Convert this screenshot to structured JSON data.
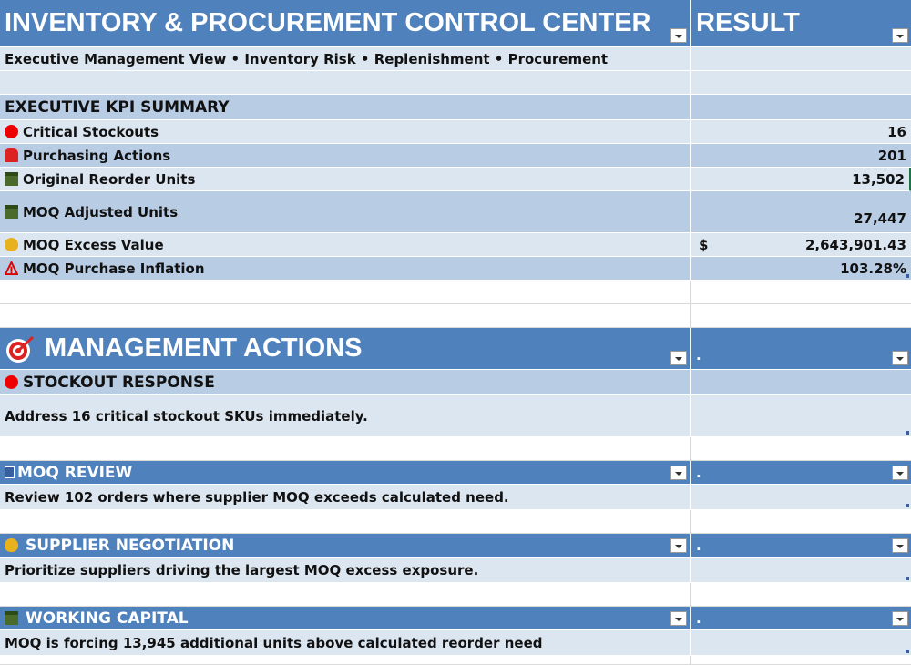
{
  "header": {
    "title": "INVENTORY & PROCUREMENT CONTROL CENTER",
    "result": "RESULT",
    "subtitle": "Executive Management View • Inventory Risk • Replenishment • Procurement"
  },
  "kpi": {
    "heading": "EXECUTIVE KPI SUMMARY",
    "rows": [
      {
        "label": "Critical Stockouts",
        "value": "16"
      },
      {
        "label": "Purchasing Actions",
        "value": "201"
      },
      {
        "label": "Original Reorder Units",
        "value": "13,502"
      },
      {
        "label": "MOQ Adjusted Units",
        "value": "27,447"
      },
      {
        "label": "MOQ Excess Value",
        "currency": "$",
        "value": "2,643,901.43"
      },
      {
        "label": "MOQ Purchase Inflation",
        "value": "103.28%"
      }
    ]
  },
  "actions": {
    "heading": "MANAGEMENT ACTIONS",
    "marker": ".",
    "sections": [
      {
        "title": "STOCKOUT RESPONSE",
        "text": "Address 16 critical stockout SKUs immediately."
      },
      {
        "title": "MOQ REVIEW",
        "text": "Review 102 orders where supplier MOQ exceeds calculated need."
      },
      {
        "title": "SUPPLIER NEGOTIATION",
        "text": "Prioritize suppliers driving the largest MOQ excess exposure."
      },
      {
        "title": "WORKING CAPITAL",
        "text": "MOQ is forcing 13,945 additional units above calculated reorder need"
      }
    ]
  }
}
